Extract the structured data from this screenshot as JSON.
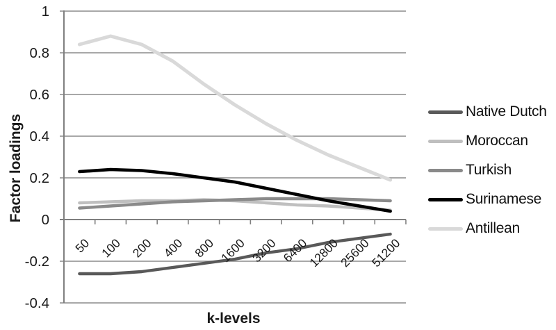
{
  "chart_data": {
    "type": "line",
    "xlabel": "k-levels",
    "ylabel": "Factor loadings",
    "categories": [
      "50",
      "100",
      "200",
      "400",
      "800",
      "1600",
      "3200",
      "6400",
      "12800",
      "25600",
      "51200"
    ],
    "ylim": [
      -0.4,
      1
    ],
    "yticks": [
      1,
      0.8,
      0.6,
      0.4,
      0.2,
      0,
      -0.2,
      -0.4
    ],
    "ytick_labels": [
      "1",
      "0.8",
      "0.6",
      "0.4",
      "0.2",
      "0",
      "-0.2",
      "-0.4"
    ],
    "grid": true,
    "legend_position": "right",
    "series": [
      {
        "name": "Native Dutch",
        "color": "#595959",
        "width": 4.4,
        "values": [
          -0.26,
          -0.26,
          -0.25,
          -0.23,
          -0.21,
          -0.19,
          -0.16,
          -0.14,
          -0.11,
          -0.09,
          -0.07
        ]
      },
      {
        "name": "Moroccan",
        "color": "#bfbfbf",
        "width": 4.4,
        "values": [
          0.08,
          0.085,
          0.09,
          0.09,
          0.095,
          0.09,
          0.08,
          0.07,
          0.065,
          0.055,
          0.045
        ]
      },
      {
        "name": "Turkish",
        "color": "#8a8a8a",
        "width": 4.4,
        "values": [
          0.055,
          0.065,
          0.075,
          0.085,
          0.09,
          0.095,
          0.1,
          0.1,
          0.1,
          0.095,
          0.09
        ]
      },
      {
        "name": "Surinamese",
        "color": "#000000",
        "width": 4.6,
        "values": [
          0.23,
          0.24,
          0.235,
          0.22,
          0.2,
          0.18,
          0.15,
          0.12,
          0.09,
          0.065,
          0.04
        ]
      },
      {
        "name": "Antillean",
        "color": "#d9d9d9",
        "width": 5,
        "values": [
          0.84,
          0.88,
          0.84,
          0.76,
          0.65,
          0.55,
          0.46,
          0.38,
          0.31,
          0.25,
          0.19
        ]
      }
    ]
  },
  "style": {
    "axis_color": "#7f7f7f",
    "grid_color": "#8c8c8c",
    "text_color": "#1a1a1a",
    "background": "#ffffff"
  }
}
